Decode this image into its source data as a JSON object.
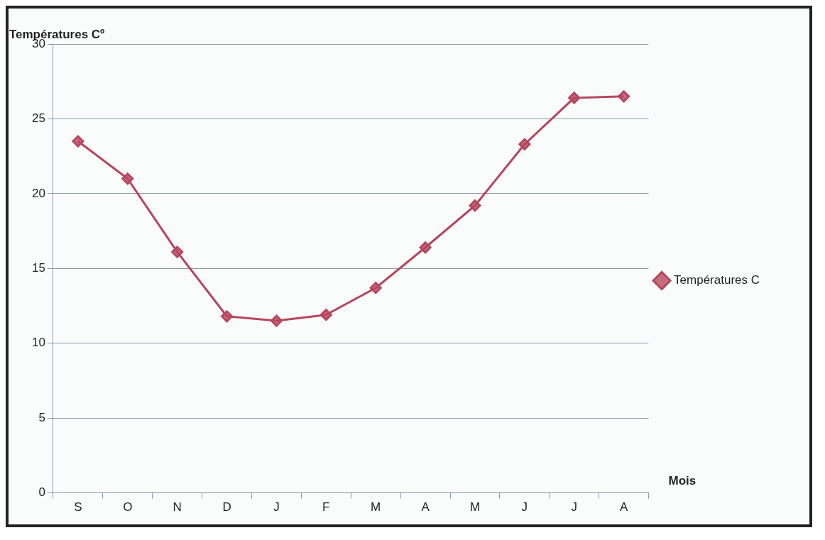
{
  "chart_data": {
    "type": "line",
    "ylabel": "Températures Cº",
    "xlabel": "Mois",
    "categories": [
      "S",
      "O",
      "N",
      "D",
      "J",
      "F",
      "M",
      "A",
      "M",
      "J",
      "J",
      "A"
    ],
    "series": [
      {
        "name": "Températures C",
        "color": "#b5475e",
        "values": [
          23.5,
          21.0,
          16.1,
          11.8,
          11.5,
          11.9,
          13.7,
          16.4,
          19.2,
          23.3,
          26.4,
          26.5
        ]
      }
    ],
    "ylim": [
      0,
      30
    ],
    "yticks": [
      0,
      5,
      10,
      15,
      20,
      25,
      30
    ],
    "grid": "y",
    "legend": "right",
    "marker": "diamond",
    "line_style": "solid"
  }
}
